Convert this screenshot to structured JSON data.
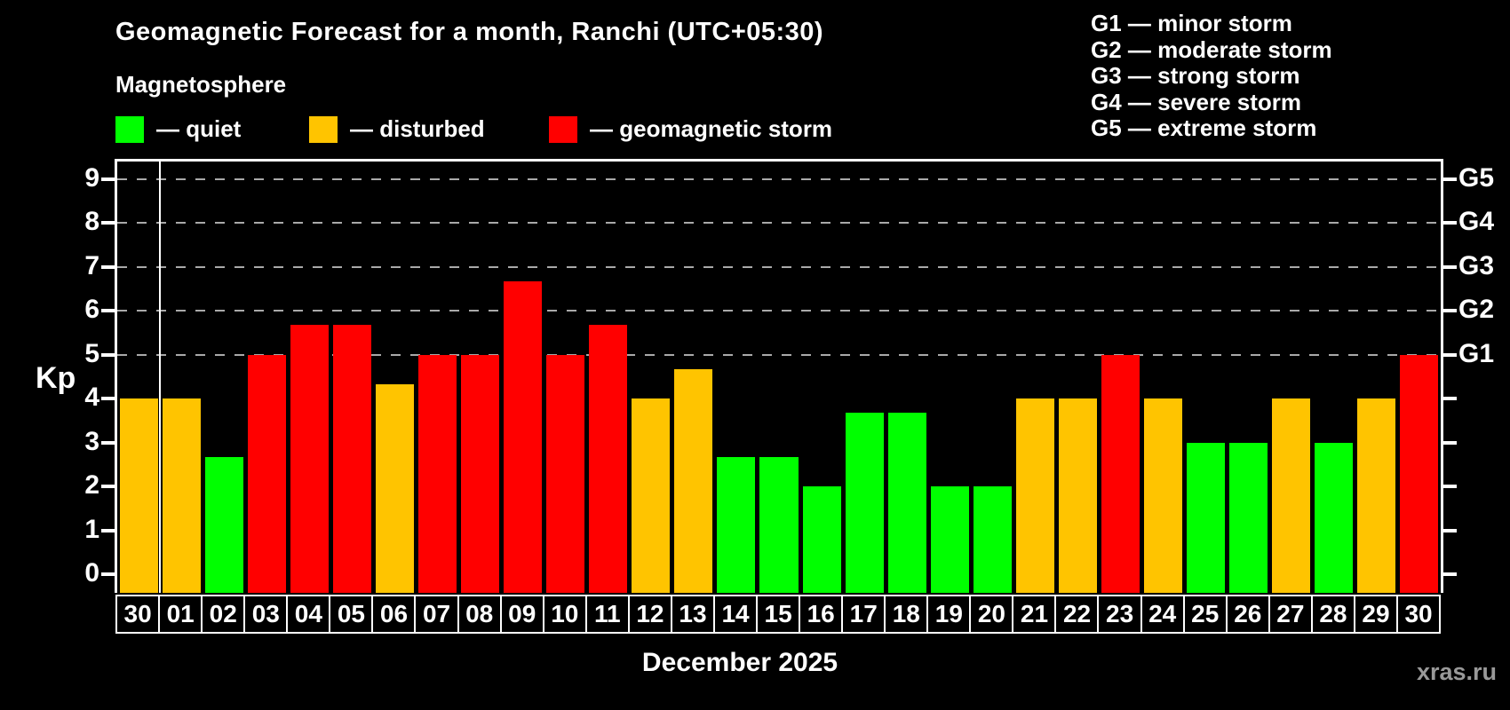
{
  "header": {
    "title": "Geomagnetic Forecast for a month, Ranchi (UTC+05:30)",
    "subtitle": "Magnetosphere"
  },
  "legend": {
    "items": [
      {
        "key": "quiet",
        "label": "— quiet",
        "color": "#00ff00"
      },
      {
        "key": "disturbed",
        "label": "— disturbed",
        "color": "#ffc400"
      },
      {
        "key": "storm",
        "label": "— geomagnetic storm",
        "color": "#ff0000"
      }
    ]
  },
  "g_scale_legend": {
    "items": [
      {
        "label": "G1 — minor storm"
      },
      {
        "label": "G2 — moderate storm"
      },
      {
        "label": "G3 — strong storm"
      },
      {
        "label": "G4 — severe storm"
      },
      {
        "label": "G5 — extreme storm"
      }
    ]
  },
  "chart_data": {
    "type": "bar",
    "title": "Geomagnetic Forecast for a month, Ranchi (UTC+05:30)",
    "xlabel": "December 2025",
    "ylabel": "Kp",
    "ylim": [
      0,
      9.4
    ],
    "yticks": [
      0,
      1,
      2,
      3,
      4,
      5,
      6,
      7,
      8,
      9
    ],
    "gridlines_at": [
      5,
      6,
      7,
      8,
      9
    ],
    "grid": true,
    "right_axis_labels": [
      {
        "kp": 5,
        "label": "G1"
      },
      {
        "kp": 6,
        "label": "G2"
      },
      {
        "kp": 7,
        "label": "G3"
      },
      {
        "kp": 8,
        "label": "G4"
      },
      {
        "kp": 9,
        "label": "G5"
      }
    ],
    "categories": [
      "30",
      "01",
      "02",
      "03",
      "04",
      "05",
      "06",
      "07",
      "08",
      "09",
      "10",
      "11",
      "12",
      "13",
      "14",
      "15",
      "16",
      "17",
      "18",
      "19",
      "20",
      "21",
      "22",
      "23",
      "24",
      "25",
      "26",
      "27",
      "28",
      "29",
      "30"
    ],
    "values": [
      4,
      4,
      2.67,
      5,
      5.67,
      5.67,
      4.33,
      5,
      5,
      6.67,
      5,
      5.67,
      4,
      4.67,
      2.67,
      2.67,
      2,
      3.67,
      3.67,
      2,
      2,
      4,
      4,
      5,
      4,
      3,
      3,
      4,
      3,
      4,
      5
    ],
    "statuses": [
      "disturbed",
      "disturbed",
      "quiet",
      "storm",
      "storm",
      "storm",
      "disturbed",
      "storm",
      "storm",
      "storm",
      "storm",
      "storm",
      "disturbed",
      "disturbed",
      "quiet",
      "quiet",
      "quiet",
      "quiet",
      "quiet",
      "quiet",
      "quiet",
      "disturbed",
      "disturbed",
      "storm",
      "disturbed",
      "quiet",
      "quiet",
      "disturbed",
      "quiet",
      "disturbed",
      "storm"
    ],
    "colors": {
      "quiet": "#00ff00",
      "disturbed": "#ffc400",
      "storm": "#ff0000"
    },
    "month_boundary_after_index": 0
  },
  "footer": {
    "xlabel": "December 2025",
    "watermark": "xras.ru"
  }
}
